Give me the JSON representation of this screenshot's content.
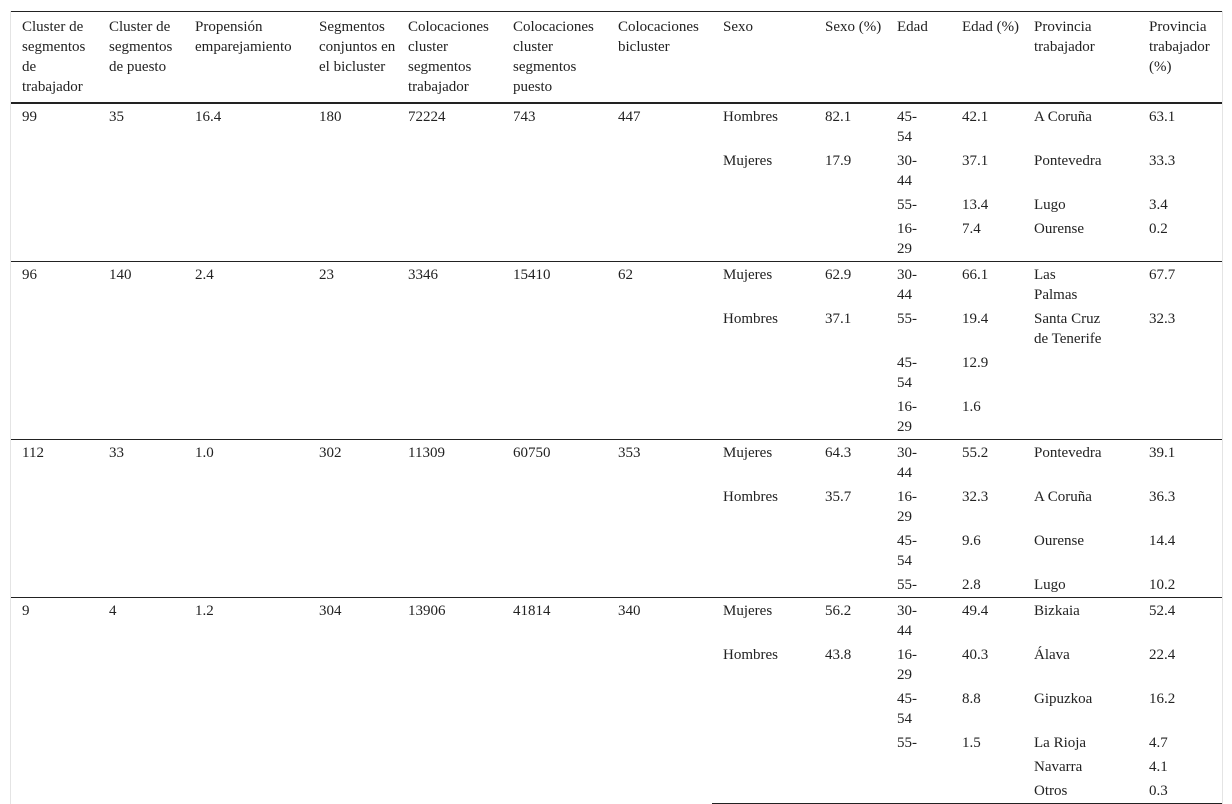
{
  "table": {
    "headers": [
      "Cluster de segmentos de trabajador",
      "Cluster de segmentos de puesto",
      "Propensión emparejamiento",
      "Segmentos conjuntos en el bicluster",
      "Colocaciones cluster segmentos trabajador",
      "Colocaciones cluster segmentos puesto",
      "Colocaciones bicluster",
      "Sexo",
      "Sexo (%)",
      "Edad",
      "Edad (%)",
      "Provincia trabajador",
      "Provincia trabajador (%)"
    ],
    "groups": [
      {
        "cells": [
          "99",
          "35",
          "16.4",
          "180",
          "72224",
          "743",
          "447"
        ],
        "sexo": [
          [
            "Hombres",
            "82.1"
          ],
          [
            "Mujeres",
            "17.9"
          ]
        ],
        "edad": [
          [
            "45-54",
            "42.1"
          ],
          [
            "30-44",
            "37.1"
          ],
          [
            "55-",
            "13.4"
          ],
          [
            "16-29",
            "7.4"
          ]
        ],
        "provincia": [
          [
            "A Coruña",
            "63.1"
          ],
          [
            "Pontevedra",
            "33.3"
          ],
          [
            "Lugo",
            "3.4"
          ],
          [
            "Ourense",
            "0.2"
          ]
        ]
      },
      {
        "cells": [
          "96",
          "140",
          "2.4",
          "23",
          "3346",
          "15410",
          "62"
        ],
        "sexo": [
          [
            "Mujeres",
            "62.9"
          ],
          [
            "Hombres",
            "37.1"
          ]
        ],
        "edad": [
          [
            "30-44",
            "66.1"
          ],
          [
            "55-",
            "19.4"
          ],
          [
            "45-54",
            "12.9"
          ],
          [
            "16-29",
            "1.6"
          ]
        ],
        "provincia": [
          [
            "Las Palmas",
            "67.7"
          ],
          [
            "Santa Cruz de Tenerife",
            "32.3"
          ]
        ]
      },
      {
        "cells": [
          "112",
          "33",
          "1.0",
          "302",
          "11309",
          "60750",
          "353"
        ],
        "sexo": [
          [
            "Mujeres",
            "64.3"
          ],
          [
            "Hombres",
            "35.7"
          ]
        ],
        "edad": [
          [
            "30-44",
            "55.2"
          ],
          [
            "16-29",
            "32.3"
          ],
          [
            "45-54",
            "9.6"
          ],
          [
            "55-",
            "2.8"
          ]
        ],
        "provincia": [
          [
            "Pontevedra",
            "39.1"
          ],
          [
            "A Coruña",
            "36.3"
          ],
          [
            "Ourense",
            "14.4"
          ],
          [
            "Lugo",
            "10.2"
          ]
        ]
      },
      {
        "cells": [
          "9",
          "4",
          "1.2",
          "304",
          "13906",
          "41814",
          "340"
        ],
        "sexo": [
          [
            "Mujeres",
            "56.2"
          ],
          [
            "Hombres",
            "43.8"
          ]
        ],
        "edad": [
          [
            "30-44",
            "49.4"
          ],
          [
            "16-29",
            "40.3"
          ],
          [
            "45-54",
            "8.8"
          ],
          [
            "55-",
            "1.5"
          ]
        ],
        "provincia": [
          [
            "Bizkaia",
            "52.4"
          ],
          [
            "Álava",
            "22.4"
          ],
          [
            "Gipuzkoa",
            "16.2"
          ],
          [
            "La Rioja",
            "4.7"
          ],
          [
            "Navarra",
            "4.1"
          ],
          [
            "Otros",
            "0.3"
          ]
        ]
      }
    ]
  }
}
